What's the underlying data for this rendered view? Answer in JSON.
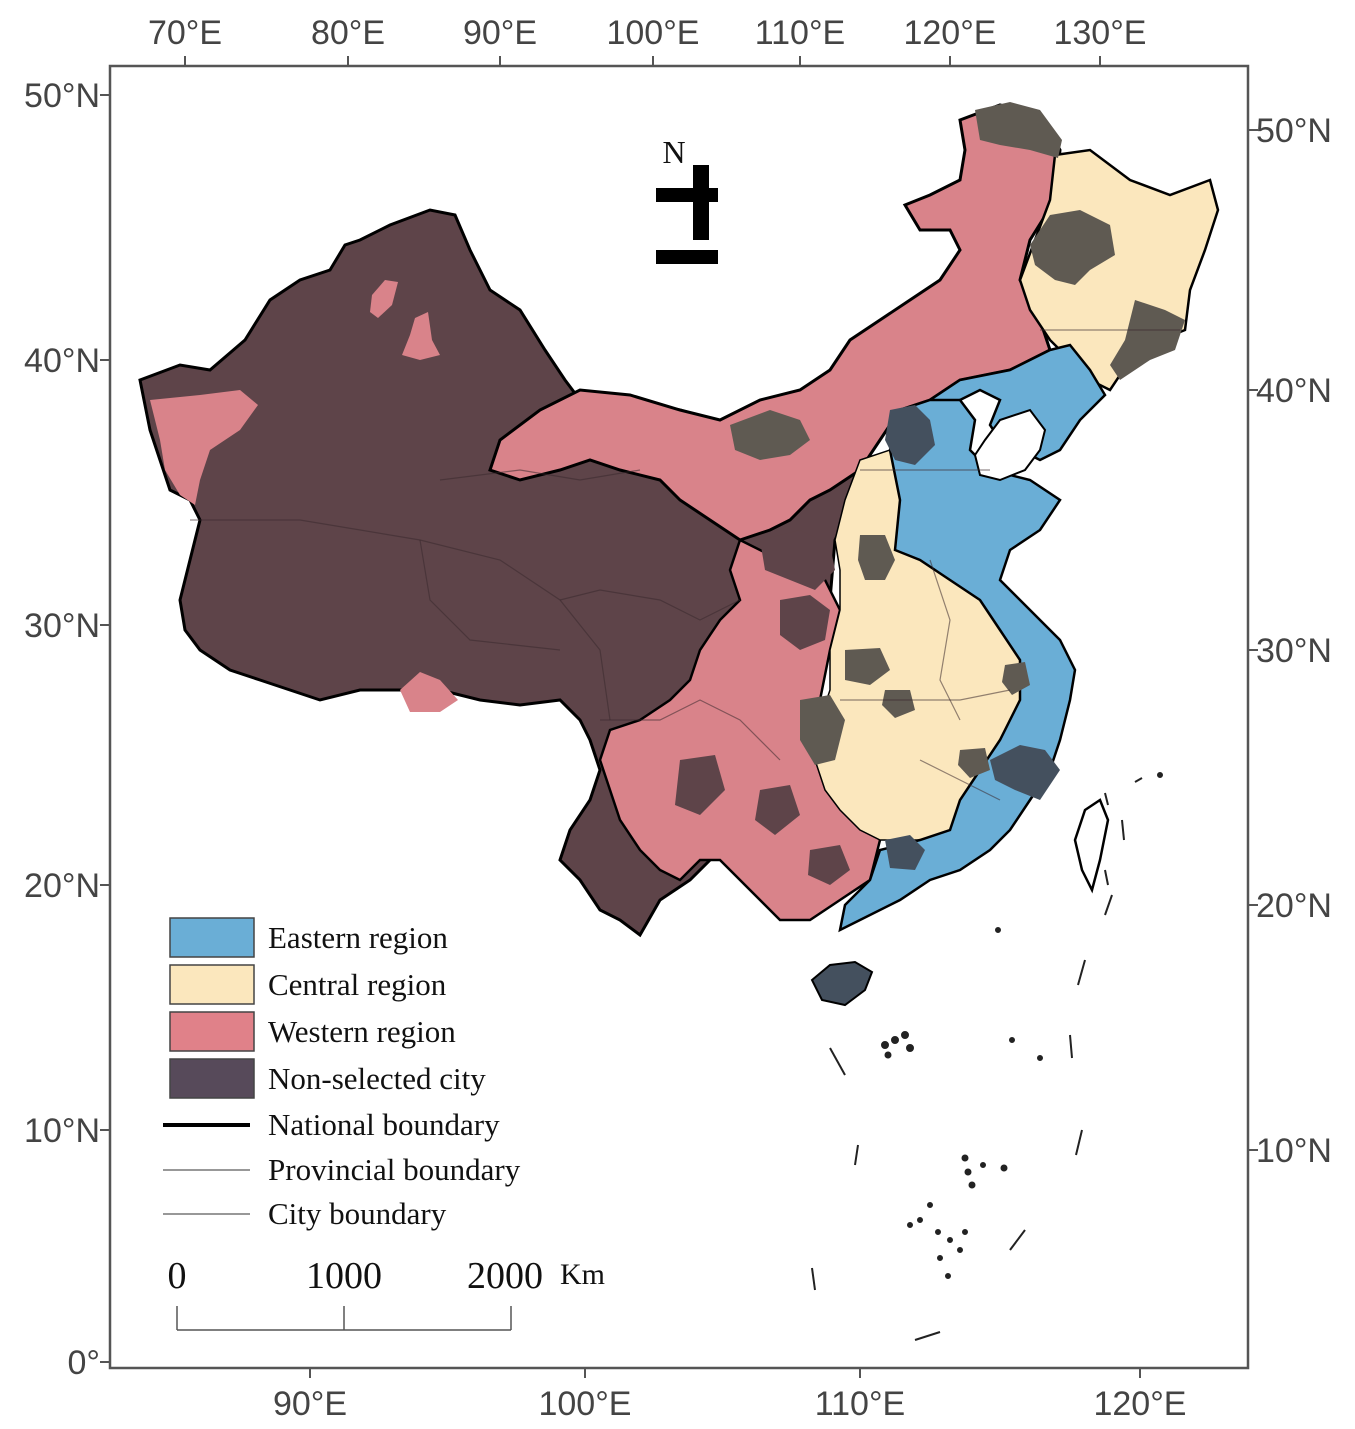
{
  "map": {
    "top_axis_labels": [
      "70°E",
      "80°E",
      "90°E",
      "100°E",
      "110°E",
      "120°E",
      "130°E"
    ],
    "bottom_axis_labels": [
      "90°E",
      "100°E",
      "110°E",
      "120°E"
    ],
    "left_axis_labels": [
      "50°N",
      "40°N",
      "30°N",
      "20°N",
      "10°N",
      "0°"
    ],
    "right_axis_labels": [
      "50°N",
      "40°N",
      "30°N",
      "20°N",
      "10°N"
    ],
    "north_arrow_label": "N",
    "colors": {
      "eastern": "#6aaed6",
      "central": "#fbe7bd",
      "western": "#d9838a",
      "non_selected": "#5e4449",
      "non_selected_dark_gray": "#5f5a52",
      "non_selected_slate": "#44505e",
      "national_boundary": "#000000",
      "provincial_boundary": "#444444",
      "city_boundary": "#888888"
    },
    "legend": {
      "patches": [
        {
          "label": "Eastern region",
          "color": "#6aaed6"
        },
        {
          "label": "Central region",
          "color": "#fbe7bd"
        },
        {
          "label": "Western region",
          "color": "#e08189"
        },
        {
          "label": "Non-selected city",
          "color": "#574a5a"
        }
      ],
      "lines": [
        {
          "label": "National boundary",
          "style": "thick"
        },
        {
          "label": "Provincial boundary",
          "style": "thin"
        },
        {
          "label": "City boundary",
          "style": "thin"
        }
      ]
    },
    "scale_bar": {
      "labels": [
        "0",
        "1000",
        "2000"
      ],
      "unit": "Km"
    }
  }
}
